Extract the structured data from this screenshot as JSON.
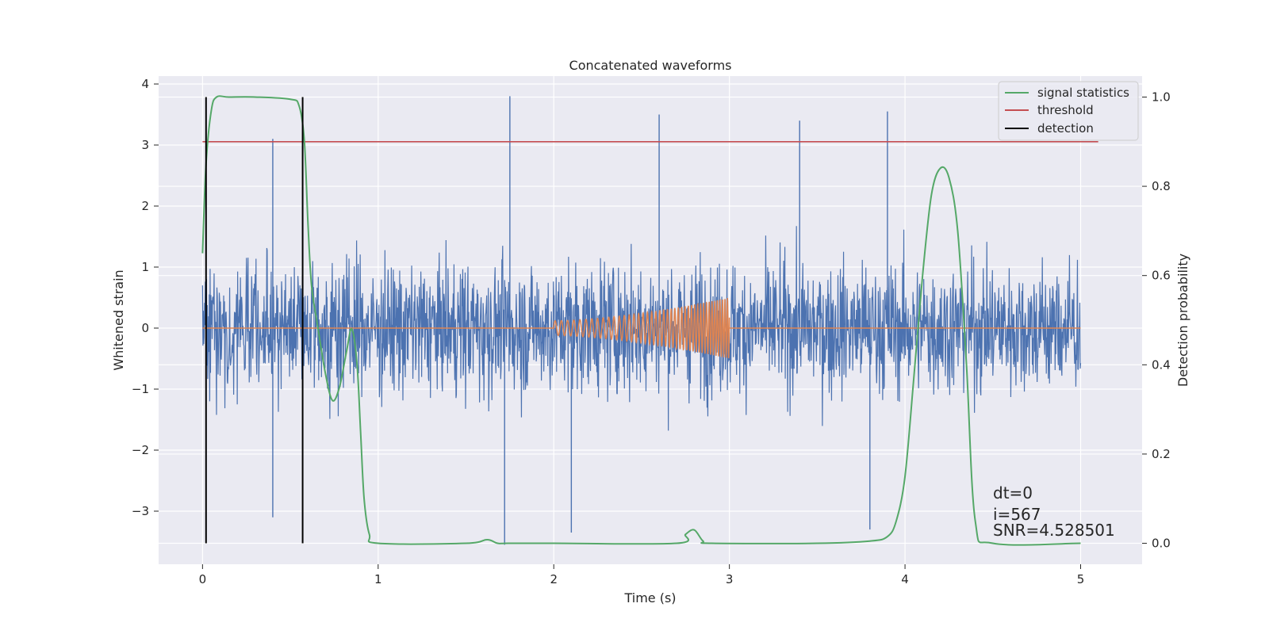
{
  "chart_data": {
    "type": "line",
    "title": "Concatenated waveforms",
    "xlabel": "Time (s)",
    "ylabel_left": "Whitened strain",
    "ylabel_right": "Detection probability",
    "xlim": [
      -0.25,
      5.35
    ],
    "ylim_left": [
      -3.87,
      4.13
    ],
    "ylim_right": [
      -0.047,
      1.047
    ],
    "xticks": [
      0,
      1,
      2,
      3,
      4,
      5
    ],
    "xtick_labels": [
      "0",
      "1",
      "2",
      "3",
      "4",
      "5"
    ],
    "yticks_left": [
      -3,
      -2,
      -1,
      0,
      1,
      2,
      3,
      4
    ],
    "ytick_labels_left": [
      "−3",
      "−2",
      "−1",
      "0",
      "1",
      "2",
      "3",
      "4"
    ],
    "yticks_right": [
      0.0,
      0.2,
      0.4,
      0.6,
      0.8,
      1.0
    ],
    "ytick_labels_right": [
      "0.0",
      "0.2",
      "0.4",
      "0.6",
      "0.8",
      "1.0"
    ],
    "grid": true,
    "legend_placement": "upper right",
    "colors": {
      "background": "#eaeaf2",
      "grid": "#ffffff",
      "strain": "#4c72b0",
      "injection": "#dd8452",
      "signal": "#55a868",
      "threshold": "#c44e52",
      "detection": "#000000"
    },
    "series": [
      {
        "name": "",
        "axis": "left",
        "description_values": "whitened noise strain, roughly Gaussian, sampled 0–5 s",
        "x_range": [
          0,
          5
        ],
        "typical_range": [
          -2.6,
          2.6
        ],
        "extremes": [
          [
            0.4,
            3.1
          ],
          [
            1.75,
            3.8
          ],
          [
            2.6,
            3.5
          ],
          [
            3.4,
            3.4
          ],
          [
            3.9,
            3.55
          ],
          [
            0.4,
            -3.1
          ],
          [
            1.72,
            -3.55
          ],
          [
            2.1,
            -3.35
          ],
          [
            3.8,
            -3.3
          ]
        ]
      },
      {
        "name": "",
        "axis": "left",
        "description_values": "injected chirp, zero outside 2–3 s, amplitude growing to ~0.5",
        "x": [
          0,
          2.0,
          3.0,
          3.0,
          5.0
        ],
        "y": [
          0,
          0,
          0.5,
          0,
          0
        ],
        "chirp": {
          "start": 2.0,
          "end": 3.0,
          "amp_start": 0.12,
          "amp_end": 0.5
        }
      },
      {
        "name": "signal statistics",
        "axis": "right",
        "x": [
          0.0,
          0.02,
          0.05,
          0.08,
          0.15,
          0.3,
          0.5,
          0.55,
          0.58,
          0.6,
          0.62,
          0.65,
          0.7,
          0.74,
          0.78,
          0.82,
          0.85,
          0.88,
          0.9,
          0.92,
          0.95,
          1.0,
          1.5,
          1.62,
          1.68,
          1.74,
          2.0,
          2.7,
          2.75,
          2.8,
          2.85,
          2.9,
          3.5,
          3.8,
          3.9,
          3.95,
          4.0,
          4.05,
          4.1,
          4.15,
          4.2,
          4.25,
          4.3,
          4.35,
          4.4,
          4.5,
          5.0
        ],
        "y": [
          0.65,
          0.85,
          0.97,
          1.0,
          1.0,
          1.0,
          0.995,
          0.98,
          0.9,
          0.72,
          0.58,
          0.5,
          0.38,
          0.32,
          0.35,
          0.43,
          0.48,
          0.4,
          0.25,
          0.1,
          0.02,
          0.0,
          0.0,
          0.008,
          0.0,
          0.0,
          0.0,
          0.0,
          0.02,
          0.03,
          0.005,
          0.0,
          0.0,
          0.005,
          0.015,
          0.05,
          0.15,
          0.37,
          0.6,
          0.78,
          0.84,
          0.82,
          0.7,
          0.4,
          0.05,
          0.0,
          0.0
        ]
      },
      {
        "name": "threshold",
        "axis": "right",
        "x": [
          0.0,
          5.1
        ],
        "y": [
          0.9,
          0.9
        ]
      },
      {
        "name": "detection",
        "axis": "right",
        "vertical_lines_x": [
          0.02,
          0.57
        ],
        "y_span": [
          0.0,
          1.0
        ]
      }
    ],
    "annotations": [
      "dt=0",
      "i=567",
      "SNR=4.528501"
    ]
  }
}
